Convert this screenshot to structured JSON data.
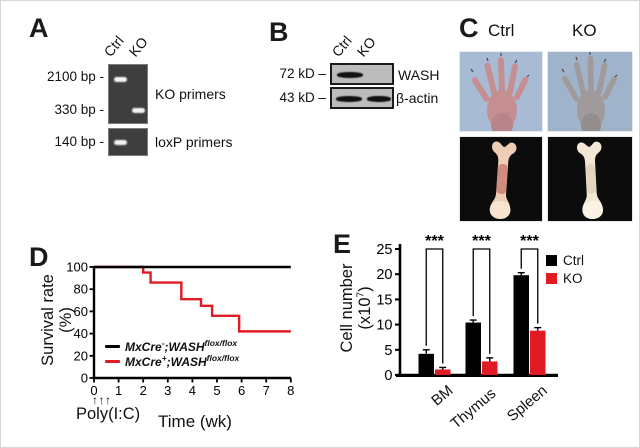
{
  "figure": {
    "background": "#ffffff",
    "accent_red": "#e01b24",
    "photo_bg_top_left": "#a7bbd5",
    "photo_bg_top_right": "#9fb3cb",
    "photo_bg_bottom": "#0c0c0c"
  },
  "panel_a": {
    "label": "A",
    "lane_labels": [
      "Ctrl",
      "KO"
    ],
    "size_labels": [
      "2100 bp -",
      "330 bp -",
      "140 bp -"
    ],
    "gel_labels": [
      "KO primers",
      "loxP primers"
    ]
  },
  "panel_b": {
    "label": "B",
    "lane_labels": [
      "Ctrl",
      "KO"
    ],
    "size_labels": [
      "72 kD –",
      "43 kD –"
    ],
    "blot_labels": [
      "WASH",
      "β-actin"
    ]
  },
  "panel_c": {
    "label": "C",
    "col_labels": [
      "Ctrl",
      "KO"
    ]
  },
  "panel_d": {
    "label": "D",
    "ylabel_line1": "Survival rate",
    "ylabel_line2": "(%)",
    "xlabel": "Time (wk)",
    "treatment_label": "Poly(I:C)",
    "treatment_arrows": "↑↑↑",
    "legend": [
      {
        "pre": "MxCre",
        "genotype_sup": "-",
        "mid": ";WASH",
        "allele_sup": "flox/flox"
      },
      {
        "pre": "MxCre",
        "genotype_sup": "+",
        "mid": ";WASH",
        "allele_sup": "flox/flox"
      }
    ]
  },
  "panel_e": {
    "label": "E",
    "ylabel_line1": "Cell number",
    "ylabel2_pre": "(x10",
    "ylabel2_sup": "7",
    "ylabel2_post": ")"
  },
  "chart_data": [
    {
      "id": "survival-curve",
      "type": "line",
      "step": true,
      "xlabel": "Time (wk)",
      "ylabel": "Survival rate (%)",
      "xlim": [
        0,
        8
      ],
      "ylim": [
        0,
        100
      ],
      "xticks": [
        0,
        1,
        2,
        3,
        4,
        5,
        6,
        7,
        8
      ],
      "yticks": [
        0,
        20,
        40,
        60,
        80,
        100
      ],
      "grid": false,
      "legend_position": "bottom-left",
      "series": [
        {
          "name": "MxCre-;WASHflox/flox",
          "color": "#000000",
          "points": [
            [
              0,
              100
            ],
            [
              8,
              100
            ]
          ]
        },
        {
          "name": "MxCre+;WASHflox/flox",
          "color": "#e01b24",
          "points": [
            [
              0,
              100
            ],
            [
              2,
              100
            ],
            [
              2,
              95
            ],
            [
              2.3,
              95
            ],
            [
              2.3,
              86
            ],
            [
              3.55,
              86
            ],
            [
              3.55,
              71
            ],
            [
              4.35,
              71
            ],
            [
              4.35,
              65
            ],
            [
              4.8,
              65
            ],
            [
              4.8,
              56
            ],
            [
              5.9,
              56
            ],
            [
              5.9,
              42
            ],
            [
              8,
              42
            ]
          ]
        }
      ],
      "annotations": {
        "injections_label": "Poly(I:C)",
        "injections_weeks": [
          0.3,
          0.55,
          0.8
        ]
      }
    },
    {
      "id": "cell-numbers",
      "type": "bar",
      "ylabel": "Cell number (x10^7)",
      "categories": [
        "BM",
        "Thymus",
        "Spleen"
      ],
      "ylim": [
        0,
        25
      ],
      "yticks": [
        0,
        5,
        10,
        15,
        20,
        25
      ],
      "grid": false,
      "legend_position": "top-right",
      "series": [
        {
          "name": "Ctrl",
          "color": "#000000",
          "values": [
            4.2,
            10.4,
            19.8
          ],
          "errors": [
            0.8,
            0.5,
            0.5
          ]
        },
        {
          "name": "KO",
          "color": "#e01b24",
          "values": [
            1.1,
            2.7,
            8.8
          ],
          "errors": [
            0.4,
            0.7,
            0.6
          ]
        }
      ],
      "significance": [
        "***",
        "***",
        "***"
      ]
    }
  ]
}
